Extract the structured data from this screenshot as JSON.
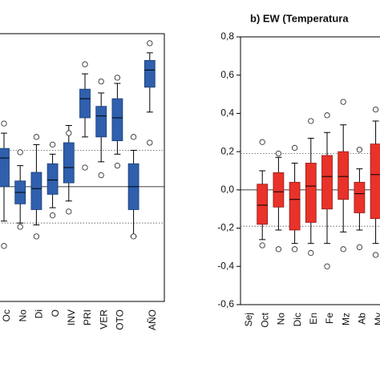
{
  "chart_data": [
    {
      "type": "box",
      "color": "#2f5fad",
      "categories": [
        "Oc",
        "No",
        "Di",
        "O",
        "INV",
        "PRI",
        "VER",
        "OTO",
        null,
        "AÑO"
      ],
      "ylim": [
        -0.6,
        0.8
      ],
      "reference_line": 0,
      "dotted_lines": [
        0.19,
        -0.19
      ],
      "boxes": [
        {
          "whisker_low": -0.18,
          "q1": 0.0,
          "median": 0.15,
          "q3": 0.2,
          "whisker_high": 0.28,
          "outliers": [
            0.33,
            -0.31
          ]
        },
        {
          "whisker_low": -0.19,
          "q1": -0.09,
          "median": -0.03,
          "q3": 0.03,
          "whisker_high": 0.11,
          "outliers": [
            0.18,
            -0.21
          ]
        },
        {
          "whisker_low": -0.2,
          "q1": -0.12,
          "median": -0.01,
          "q3": 0.075,
          "whisker_high": 0.22,
          "outliers": [
            0.26,
            -0.26
          ]
        },
        {
          "whisker_low": -0.11,
          "q1": -0.04,
          "median": 0.035,
          "q3": 0.12,
          "whisker_high": 0.17,
          "outliers": [
            0.22,
            -0.15
          ]
        },
        {
          "whisker_low": -0.075,
          "q1": 0.02,
          "median": 0.1,
          "q3": 0.23,
          "whisker_high": 0.32,
          "outliers": [
            0.28,
            -0.13
          ]
        },
        {
          "whisker_low": 0.26,
          "q1": 0.36,
          "median": 0.46,
          "q3": 0.51,
          "whisker_high": 0.59,
          "outliers": [
            0.64,
            0.1
          ]
        },
        {
          "whisker_low": 0.13,
          "q1": 0.26,
          "median": 0.37,
          "q3": 0.42,
          "whisker_high": 0.49,
          "outliers": [
            0.55,
            0.06
          ]
        },
        {
          "whisker_low": 0.17,
          "q1": 0.24,
          "median": 0.36,
          "q3": 0.46,
          "whisker_high": 0.54,
          "outliers": [
            0.57,
            0.11
          ]
        },
        {
          "whisker_low": -0.26,
          "q1": -0.12,
          "median": 0.0,
          "q3": 0.12,
          "whisker_high": 0.19,
          "outliers": [
            0.26,
            -0.26
          ]
        },
        {
          "whisker_low": 0.39,
          "q1": 0.52,
          "median": 0.61,
          "q3": 0.66,
          "whisker_high": 0.7,
          "outliers": [
            0.75,
            0.23
          ]
        }
      ]
    },
    {
      "type": "box",
      "title": "b) EW (Temperatura",
      "color": "#e8322a",
      "categories": [
        "Sej",
        "Oct",
        "No",
        "Dic",
        "En",
        "Fe",
        "Mz",
        "Ab",
        "My"
      ],
      "ylim": [
        -0.6,
        0.8
      ],
      "yticks": [
        {
          "value": 0.8,
          "label": "0,8"
        },
        {
          "value": 0.6,
          "label": "0,6"
        },
        {
          "value": 0.4,
          "label": "0,4"
        },
        {
          "value": 0.2,
          "label": "0,2"
        },
        {
          "value": 0,
          "label": "0,0"
        },
        {
          "value": -0.2,
          "label": "-0,2"
        },
        {
          "value": -0.4,
          "label": "-0,4"
        },
        {
          "value": -0.6,
          "label": "-0,6"
        }
      ],
      "reference_line": 0,
      "dotted_lines": [
        0.19,
        -0.19
      ],
      "boxes": [
        null,
        {
          "whisker_low": -0.26,
          "q1": -0.18,
          "median": -0.08,
          "q3": 0.03,
          "whisker_high": 0.1,
          "outliers": [
            0.25,
            -0.29
          ]
        },
        {
          "whisker_low": -0.21,
          "q1": -0.09,
          "median": -0.01,
          "q3": 0.09,
          "whisker_high": 0.17,
          "outliers": [
            0.19,
            -0.31
          ]
        },
        {
          "whisker_low": -0.28,
          "q1": -0.21,
          "median": -0.05,
          "q3": 0.04,
          "whisker_high": 0.14,
          "outliers": [
            0.22,
            -0.31
          ]
        },
        {
          "whisker_low": -0.28,
          "q1": -0.17,
          "median": 0.02,
          "q3": 0.14,
          "whisker_high": 0.27,
          "outliers": [
            0.36,
            -0.33
          ]
        },
        {
          "whisker_low": -0.28,
          "q1": -0.1,
          "median": 0.07,
          "q3": 0.18,
          "whisker_high": 0.3,
          "outliers": [
            0.39,
            -0.4
          ]
        },
        {
          "whisker_low": -0.22,
          "q1": -0.05,
          "median": 0.07,
          "q3": 0.2,
          "whisker_high": 0.34,
          "outliers": [
            0.46,
            -0.31
          ]
        },
        {
          "whisker_low": -0.21,
          "q1": -0.12,
          "median": -0.02,
          "q3": 0.04,
          "whisker_high": 0.11,
          "outliers": [
            0.21,
            -0.3
          ]
        },
        {
          "whisker_low": -0.28,
          "q1": -0.15,
          "median": 0.08,
          "q3": 0.24,
          "whisker_high": 0.36,
          "outliers": [
            0.42,
            -0.34
          ]
        }
      ]
    }
  ]
}
